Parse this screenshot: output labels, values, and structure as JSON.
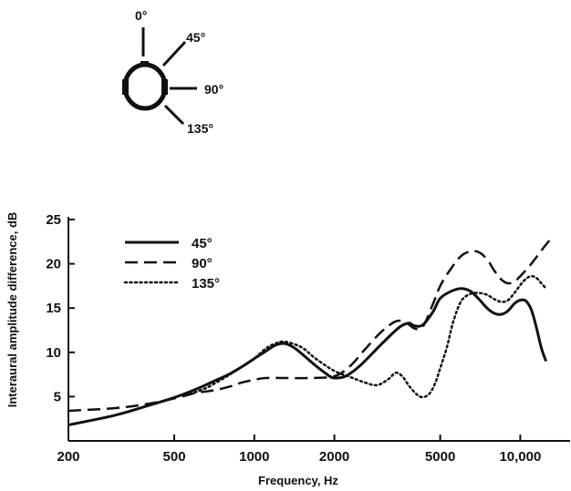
{
  "diagram": {
    "angles": [
      "0°",
      "45°",
      "90°",
      "135°"
    ]
  },
  "chart_data": {
    "type": "line",
    "title": "",
    "xlabel": "Frequency, Hz",
    "ylabel": "Interaural amplitude difference, dB",
    "x_scale": "log",
    "xlim": [
      200,
      14000
    ],
    "ylim": [
      0,
      25
    ],
    "x_ticks": [
      200,
      500,
      1000,
      2000,
      5000,
      10000
    ],
    "x_tick_labels": [
      "200",
      "500",
      "1000",
      "2000",
      "5000",
      "10,000"
    ],
    "y_ticks": [
      5,
      10,
      15,
      20,
      25
    ],
    "y_tick_labels": [
      "5",
      "10",
      "15",
      "20",
      "25"
    ],
    "grid": false,
    "legend_position": "top-left",
    "series": [
      {
        "name": "45°",
        "style": "solid",
        "color": "#111111",
        "x": [
          200,
          300,
          400,
          500,
          600,
          700,
          800,
          900,
          1000,
          1100,
          1200,
          1300,
          1400,
          1500,
          1700,
          1900,
          2000,
          2200,
          2500,
          3000,
          3500,
          3800,
          4000,
          4300,
          4700,
          5000,
          5500,
          6000,
          6500,
          7000,
          7500,
          8000,
          8500,
          9000,
          9500,
          10000,
          10500,
          11000,
          11500,
          12000,
          12500
        ],
        "y": [
          1.8,
          2.9,
          4.0,
          4.9,
          5.8,
          6.7,
          7.5,
          8.4,
          9.3,
          10.1,
          10.8,
          11.0,
          10.6,
          9.9,
          8.5,
          7.4,
          7.1,
          7.3,
          8.5,
          10.9,
          12.8,
          13.3,
          13.0,
          13.1,
          14.6,
          16.1,
          16.9,
          17.2,
          16.9,
          16.0,
          15.0,
          14.4,
          14.3,
          14.7,
          15.5,
          15.9,
          15.8,
          14.8,
          12.8,
          10.5,
          9.0
        ]
      },
      {
        "name": "90°",
        "style": "dashed",
        "color": "#111111",
        "x": [
          200,
          300,
          400,
          500,
          600,
          700,
          800,
          900,
          1000,
          1100,
          1300,
          1600,
          2000,
          2300,
          2600,
          3000,
          3400,
          3700,
          4000,
          4300,
          4700,
          5000,
          5500,
          6000,
          6500,
          7000,
          7500,
          8000,
          8500,
          9000,
          9500,
          10000,
          11000,
          12000,
          13000
        ],
        "y": [
          3.4,
          3.7,
          4.2,
          4.8,
          5.4,
          5.7,
          6.1,
          6.6,
          6.9,
          7.1,
          7.1,
          7.1,
          7.3,
          8.5,
          10.3,
          12.3,
          13.5,
          13.4,
          12.7,
          12.9,
          15.5,
          17.5,
          19.5,
          20.9,
          21.4,
          21.3,
          20.5,
          19.2,
          18.2,
          17.8,
          18.0,
          18.6,
          20.0,
          21.5,
          22.8
        ]
      },
      {
        "name": "135°",
        "style": "dotted",
        "color": "#111111",
        "x": [
          550,
          650,
          750,
          850,
          1000,
          1100,
          1200,
          1300,
          1500,
          1700,
          2000,
          2300,
          2600,
          2900,
          3200,
          3400,
          3600,
          3800,
          4000,
          4200,
          4400,
          4600,
          4800,
          5000,
          5300,
          5600,
          6000,
          6500,
          7000,
          7500,
          8000,
          8500,
          9000,
          9500,
          10000,
          10500,
          11000,
          11500,
          12000,
          12500
        ],
        "y": [
          5.1,
          5.9,
          6.9,
          7.9,
          9.3,
          10.4,
          11.0,
          11.2,
          10.6,
          9.3,
          7.9,
          7.2,
          6.6,
          6.3,
          7.0,
          7.7,
          7.3,
          6.3,
          5.5,
          5.0,
          5.0,
          5.5,
          6.6,
          8.2,
          10.6,
          13.5,
          15.8,
          16.6,
          16.7,
          16.5,
          16.0,
          15.7,
          15.9,
          16.7,
          17.6,
          18.3,
          18.6,
          18.4,
          17.8,
          17.2
        ]
      }
    ]
  }
}
